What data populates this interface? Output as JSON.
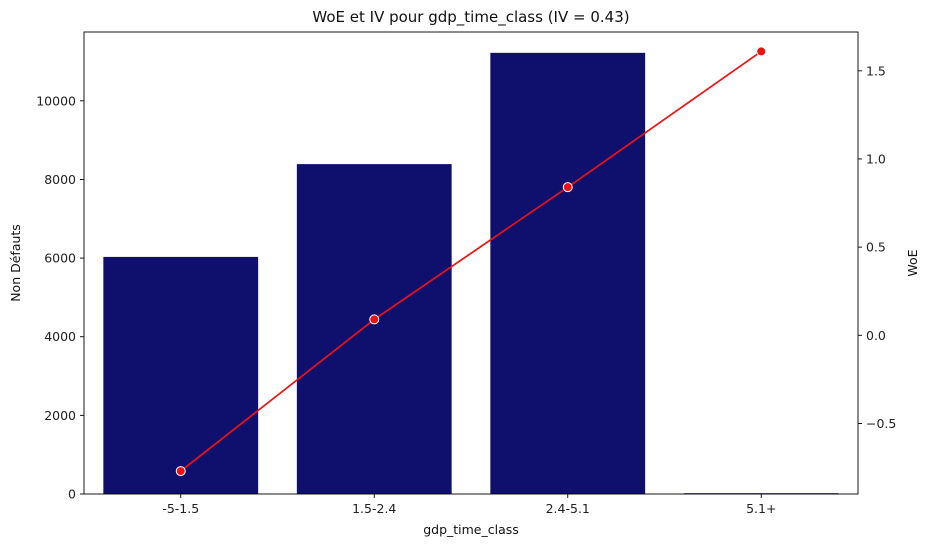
{
  "chart_data": {
    "type": "bar",
    "title": "WoE et IV pour gdp_time_class (IV = 0.43)",
    "xlabel": "gdp_time_class",
    "ylabel": "Non Défauts",
    "y2label": "WoE",
    "categories": [
      "-5-1.5",
      "1.5-2.4",
      "2.4-5.1",
      "5.1+"
    ],
    "series": [
      {
        "axis": "left",
        "type": "bar",
        "values": [
          6030,
          8390,
          11220,
          20
        ]
      },
      {
        "axis": "right",
        "type": "line",
        "values": [
          -0.77,
          0.09,
          0.84,
          1.61
        ]
      }
    ],
    "ylim": [
      0,
      11750
    ],
    "y2lim": [
      -0.9,
      1.72
    ],
    "yticks": [
      0,
      2000,
      4000,
      6000,
      8000,
      10000
    ],
    "y2ticks": [
      -0.5,
      0.0,
      0.5,
      1.0,
      1.5
    ],
    "y2tick_labels": [
      "−0.5",
      "0.0",
      "0.5",
      "1.0",
      "1.5"
    ],
    "grid": false,
    "colors": {
      "bar": "#0f0f6e",
      "line": "#ee1111",
      "y2label": "#ee1111"
    }
  }
}
